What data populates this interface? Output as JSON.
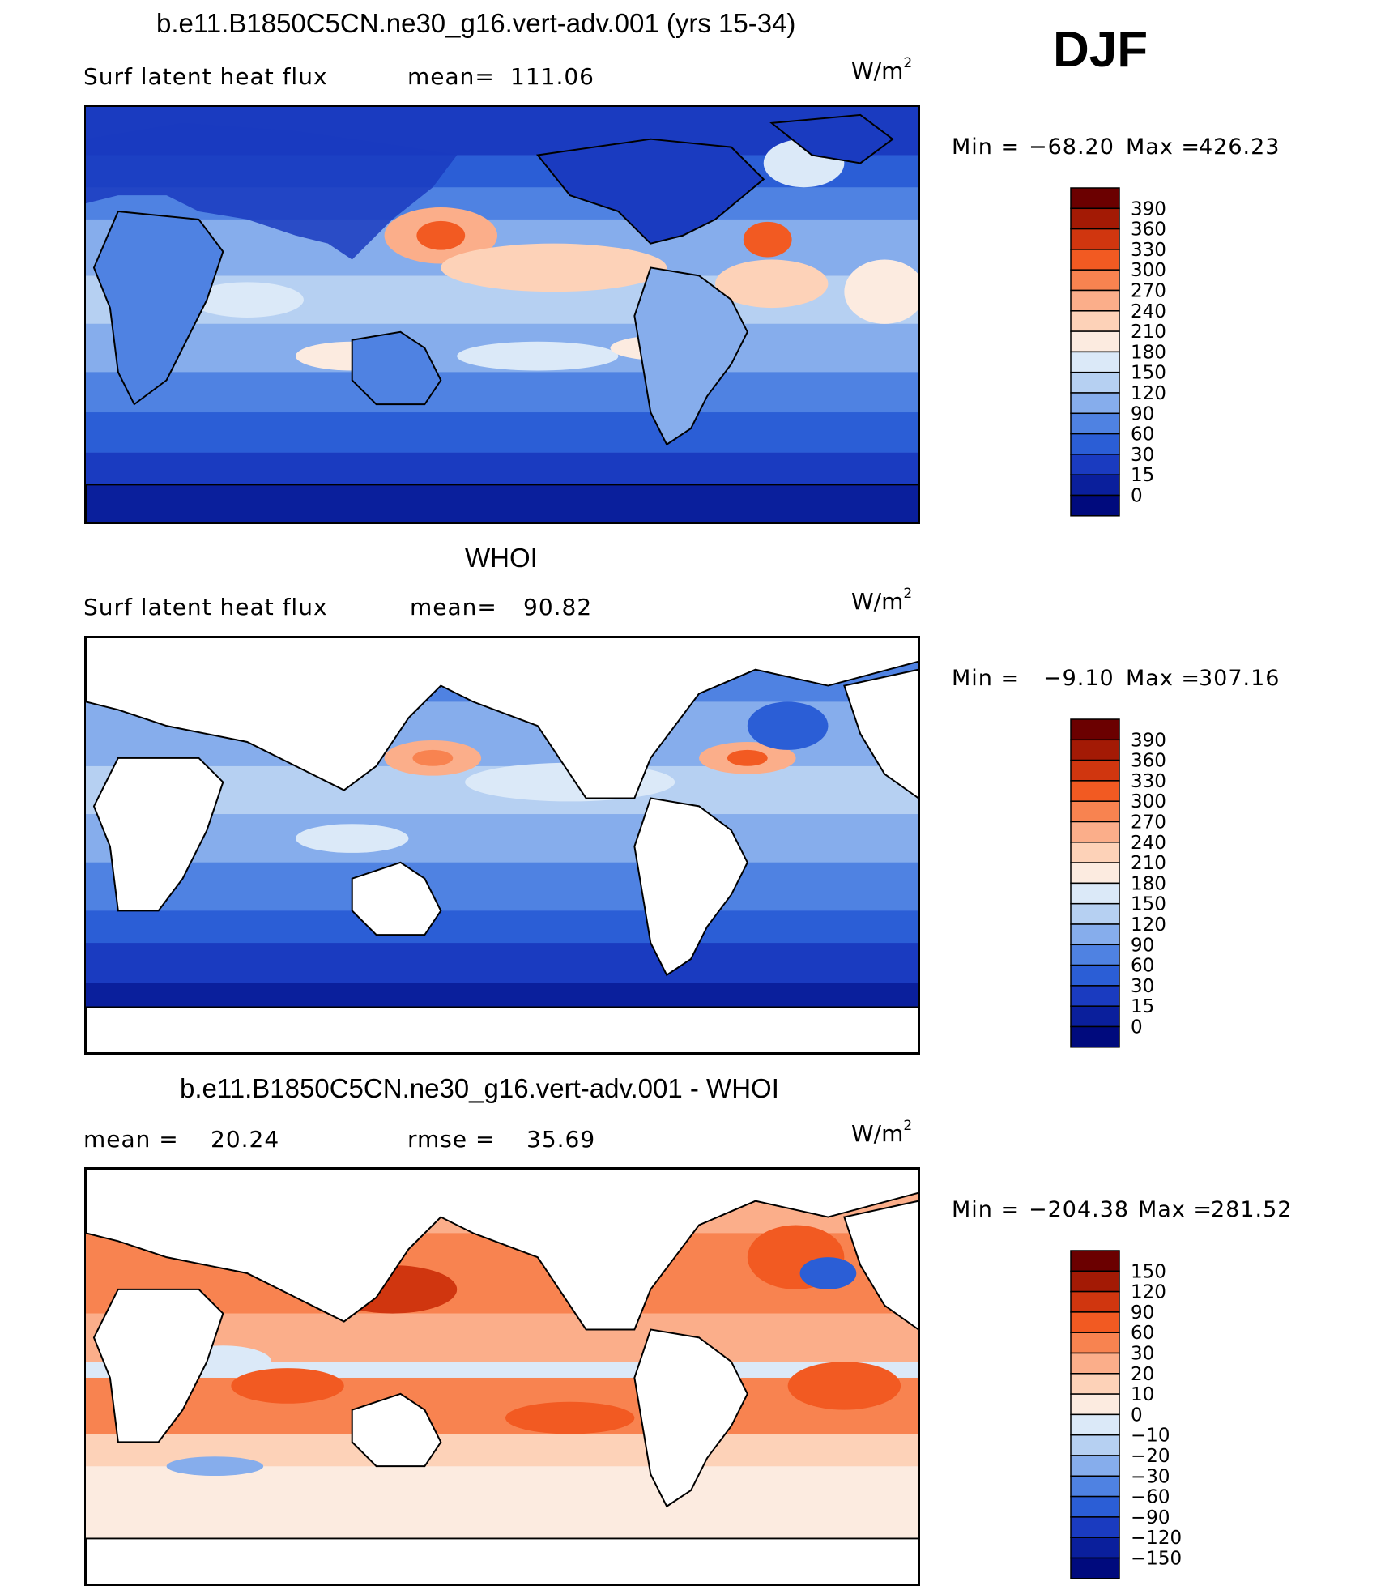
{
  "season": "DJF",
  "panels": [
    {
      "title": "b.e11.B1850C5CN.ne30_g16.vert-adv.001 (yrs 15-34)",
      "left_label": "Surf latent heat flux",
      "stat_label": "mean=",
      "stat_value": "111.06",
      "stat2_label": "",
      "stat2_value": "",
      "units": "W/m",
      "units_exp": "2",
      "min_label": "Min =",
      "min_value": "−68.20",
      "max_label": "Max =",
      "max_value": "426.23",
      "colorbar_labels": [
        "390",
        "360",
        "330",
        "300",
        "270",
        "240",
        "210",
        "180",
        "150",
        "120",
        "90",
        "60",
        "30",
        "15",
        "0"
      ]
    },
    {
      "title": "WHOI",
      "left_label": "Surf latent heat flux",
      "stat_label": "mean=",
      "stat_value": "90.82",
      "stat2_label": "",
      "stat2_value": "",
      "units": "W/m",
      "units_exp": "2",
      "min_label": "Min =",
      "min_value": "−9.10",
      "max_label": "Max =",
      "max_value": "307.16",
      "colorbar_labels": [
        "390",
        "360",
        "330",
        "300",
        "270",
        "240",
        "210",
        "180",
        "150",
        "120",
        "90",
        "60",
        "30",
        "15",
        "0"
      ]
    },
    {
      "title": "b.e11.B1850C5CN.ne30_g16.vert-adv.001 - WHOI",
      "left_label": "mean =",
      "stat_label": "",
      "stat_value": "20.24",
      "stat2_label": "rmse =",
      "stat2_value": "35.69",
      "units": "W/m",
      "units_exp": "2",
      "min_label": "Min =",
      "min_value": "−204.38",
      "max_label": "Max =",
      "max_value": "281.52",
      "colorbar_labels": [
        "150",
        "120",
        "90",
        "60",
        "30",
        "20",
        "10",
        "0",
        "−10",
        "−20",
        "−30",
        "−60",
        "−90",
        "−120",
        "−150"
      ]
    }
  ],
  "colors": {
    "flux_scale": [
      "#6b0000",
      "#a31a05",
      "#d0360f",
      "#f25a22",
      "#f88350",
      "#fbae8a",
      "#fdd2b8",
      "#fcebe0",
      "#dbe9f8",
      "#b6d0f2",
      "#86adec",
      "#4f82e2",
      "#2b5ed6",
      "#1a3bc0",
      "#0a1f9c",
      "#000a7d"
    ],
    "diff_scale": [
      "#6b0000",
      "#a31a05",
      "#d0360f",
      "#f25a22",
      "#f88350",
      "#fbae8a",
      "#fdd2b8",
      "#fcebe0",
      "#dbe9f8",
      "#b6d0f2",
      "#86adec",
      "#4f82e2",
      "#2b5ed6",
      "#1a3bc0",
      "#0a1f9c",
      "#000a7d"
    ],
    "land_mask": "#ffffff",
    "coastline": "#000000"
  }
}
